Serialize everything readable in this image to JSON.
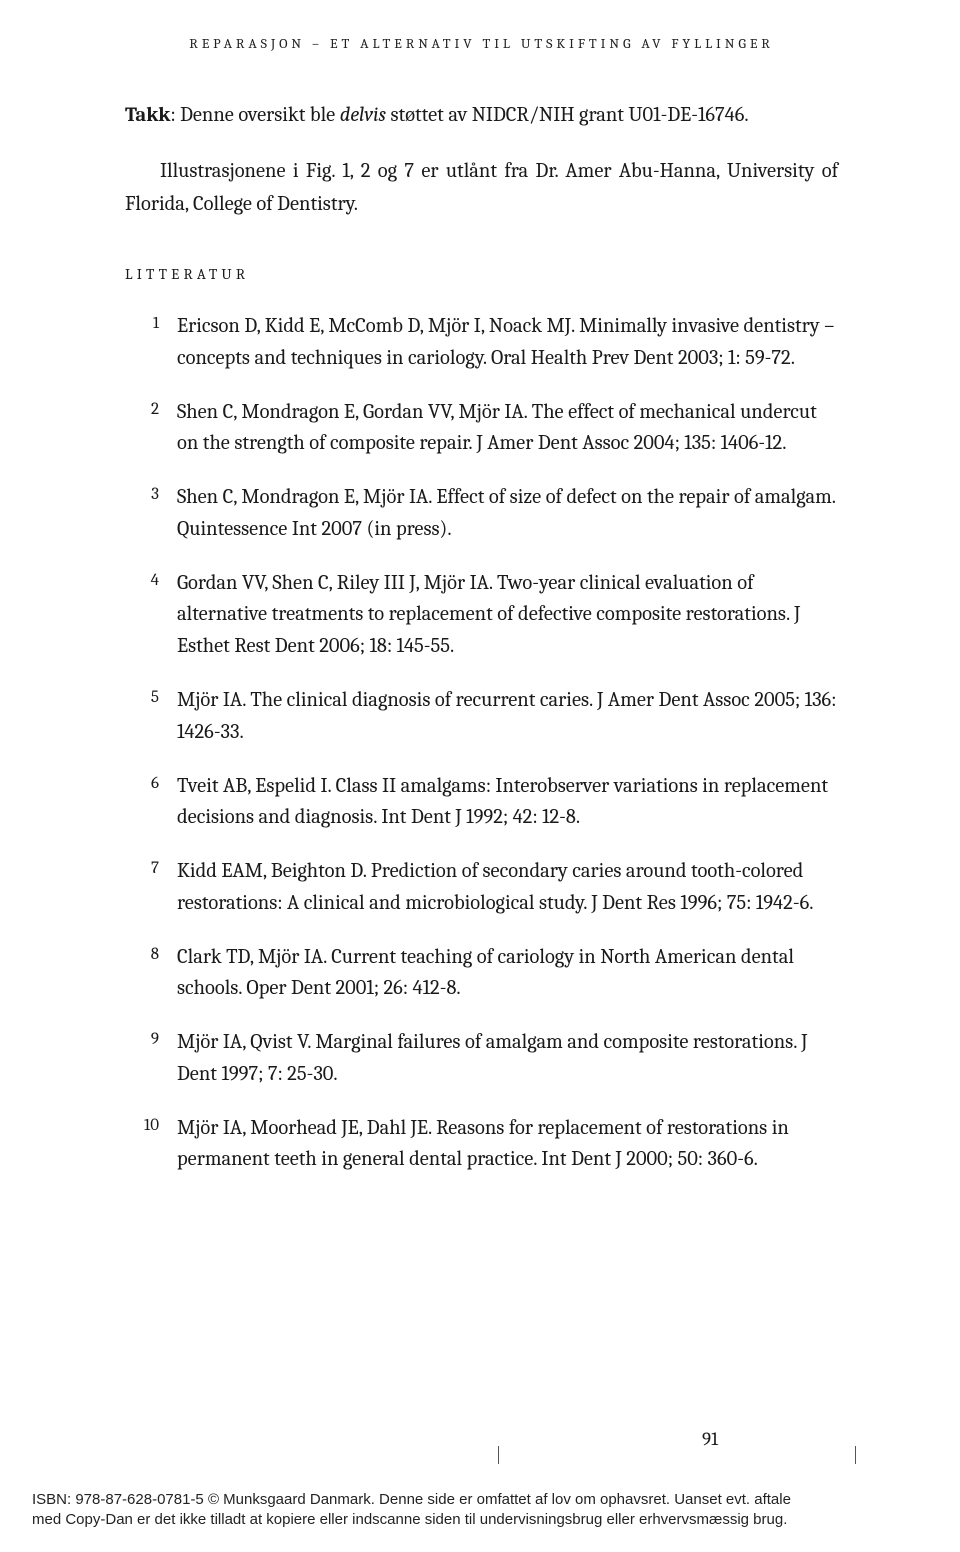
{
  "running_header": "REPARASJON – ET ALTERNATIV TIL UTSKIFTING AV FYLLINGER",
  "intro": {
    "takk_label": "Takk",
    "line1_rest": ": Denne oversikt ble ",
    "delvis": "delvis",
    "line1_after": " støttet av NIDCR/NIH grant U01-DE-16746.",
    "line2": "Illustrasjonene i Fig. 1, 2 og 7 er utlånt fra Dr. Amer Abu-Hanna, University of Florida, College of Dentistry."
  },
  "section_heading": "LITTERATUR",
  "references": [
    {
      "n": "1",
      "text": "Ericson D, Kidd E, McComb D, Mjör I, Noack MJ. Minimally invasive dentistry – concepts and techniques in cariology. Oral Health Prev Dent 2003; 1: 59-72."
    },
    {
      "n": "2",
      "text": "Shen C, Mondragon E, Gordan VV, Mjör IA. The effect of mechanical undercut on the strength of composite repair. J Amer Dent Assoc 2004; 135: 1406-12."
    },
    {
      "n": "3",
      "text": "Shen C, Mondragon E, Mjör IA. Effect of size of defect on the repair of amalgam. Quintessence Int 2007 (in press)."
    },
    {
      "n": "4",
      "text": "Gordan VV, Shen C, Riley III J, Mjör IA. Two-year clinical evaluation of alternative treatments to replacement of defective composite restorations. J Esthet Rest Dent 2006; 18: 145-55."
    },
    {
      "n": "5",
      "text": "Mjör IA. The clinical diagnosis of recurrent caries. J Amer Dent Assoc 2005; 136: 1426-33."
    },
    {
      "n": "6",
      "text": "Tveit AB, Espelid I. Class II amalgams: Interobserver variations in replacement decisions and diagnosis. Int Dent J 1992; 42: 12-8."
    },
    {
      "n": "7",
      "text": "Kidd EAM, Beighton D. Prediction of secondary caries around tooth-colored restorations: A clinical and microbiological study. J Dent Res 1996; 75: 1942-6."
    },
    {
      "n": "8",
      "text": "Clark TD, Mjör IA. Current teaching of cariology in North American dental schools. Oper Dent 2001; 26: 412-8."
    },
    {
      "n": "9",
      "text": "Mjör IA, Qvist V. Marginal failures of amalgam and composite restorations. J Dent 1997; 7: 25-30."
    },
    {
      "n": "10",
      "text": "Mjör IA, Moorhead JE, Dahl JE. Reasons for replacement of restorations in permanent teeth in general dental practice. Int Dent J 2000; 50: 360-6."
    }
  ],
  "page_number": "91",
  "tick_positions": [
    498,
    855
  ],
  "footer": {
    "line1": "ISBN: 978-87-628-0781-5 © Munksgaard Danmark. Denne side er omfattet af lov om ophavsret. Uanset evt. aftale",
    "line2": "med Copy-Dan er det ikke tilladt at kopiere eller indscanne siden til undervisningsbrug eller erhvervsmæssig brug."
  }
}
